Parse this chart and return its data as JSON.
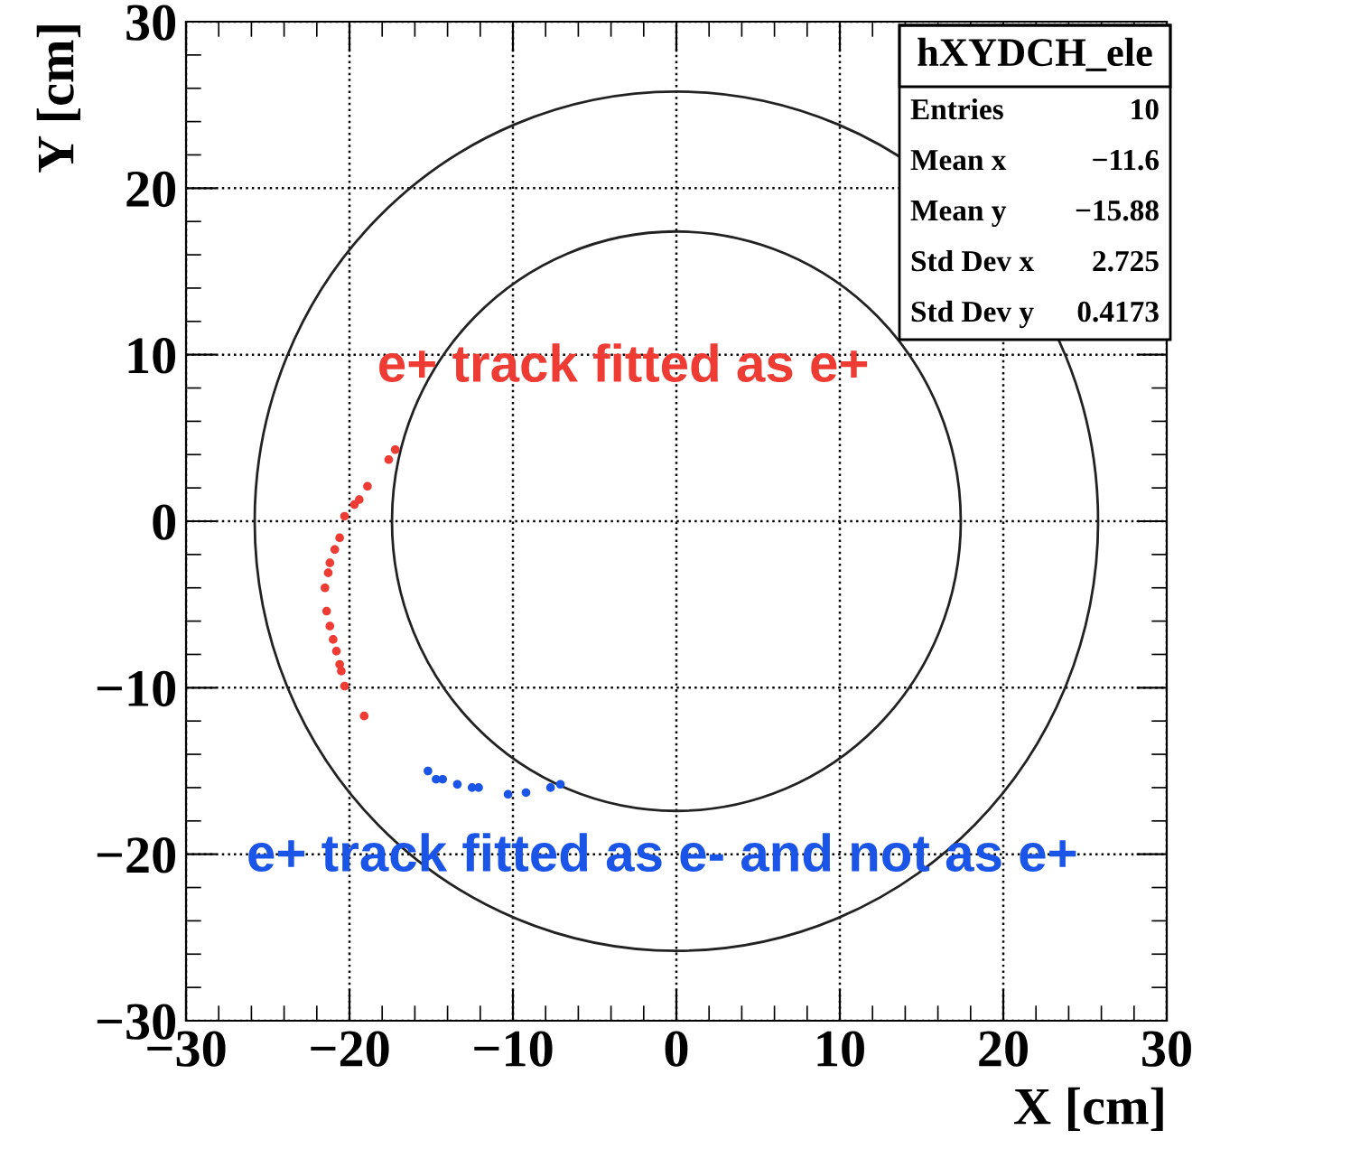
{
  "chart_data": {
    "type": "scatter",
    "xlabel": "X [cm]",
    "ylabel": "Y [cm]",
    "xlim": [
      -30,
      30
    ],
    "ylim": [
      -30,
      30
    ],
    "xticks": [
      -30,
      -20,
      -10,
      0,
      10,
      20,
      30
    ],
    "yticks": [
      -30,
      -20,
      -10,
      0,
      10,
      20,
      30
    ],
    "grid": true,
    "marker": "circle",
    "series": [
      {
        "name": "e+ track fitted as e+",
        "color": "#ee3b33",
        "x": [
          -17.2,
          -17.6,
          -18.9,
          -19.4,
          -19.7,
          -20.3,
          -20.6,
          -20.9,
          -21.2,
          -21.3,
          -21.5,
          -21.4,
          -21.2,
          -21.0,
          -20.8,
          -20.6,
          -20.5,
          -20.3,
          -19.1
        ],
        "values": [
          4.3,
          3.7,
          2.1,
          1.3,
          1.0,
          0.3,
          -1.0,
          -1.7,
          -2.5,
          -3.1,
          -4.0,
          -5.4,
          -6.3,
          -7.1,
          -7.8,
          -8.6,
          -9.0,
          -9.9,
          -11.7
        ]
      },
      {
        "name": "e+ track fitted as e- and not as e+",
        "color": "#1a55e8",
        "x": [
          -15.2,
          -14.7,
          -14.3,
          -13.4,
          -12.5,
          -12.1,
          -10.3,
          -9.2,
          -7.7,
          -7.1
        ],
        "values": [
          -15.0,
          -15.5,
          -15.5,
          -15.8,
          -16.0,
          -16.0,
          -16.4,
          -16.3,
          -16.0,
          -15.8
        ]
      }
    ],
    "annotations": [
      "hXYDCH_ele",
      "Entries",
      "10",
      "Mean x",
      "−11.6",
      "Mean y",
      "−15.88",
      "Std Dev x",
      "2.725",
      "Std Dev y",
      "0.4173"
    ]
  }
}
